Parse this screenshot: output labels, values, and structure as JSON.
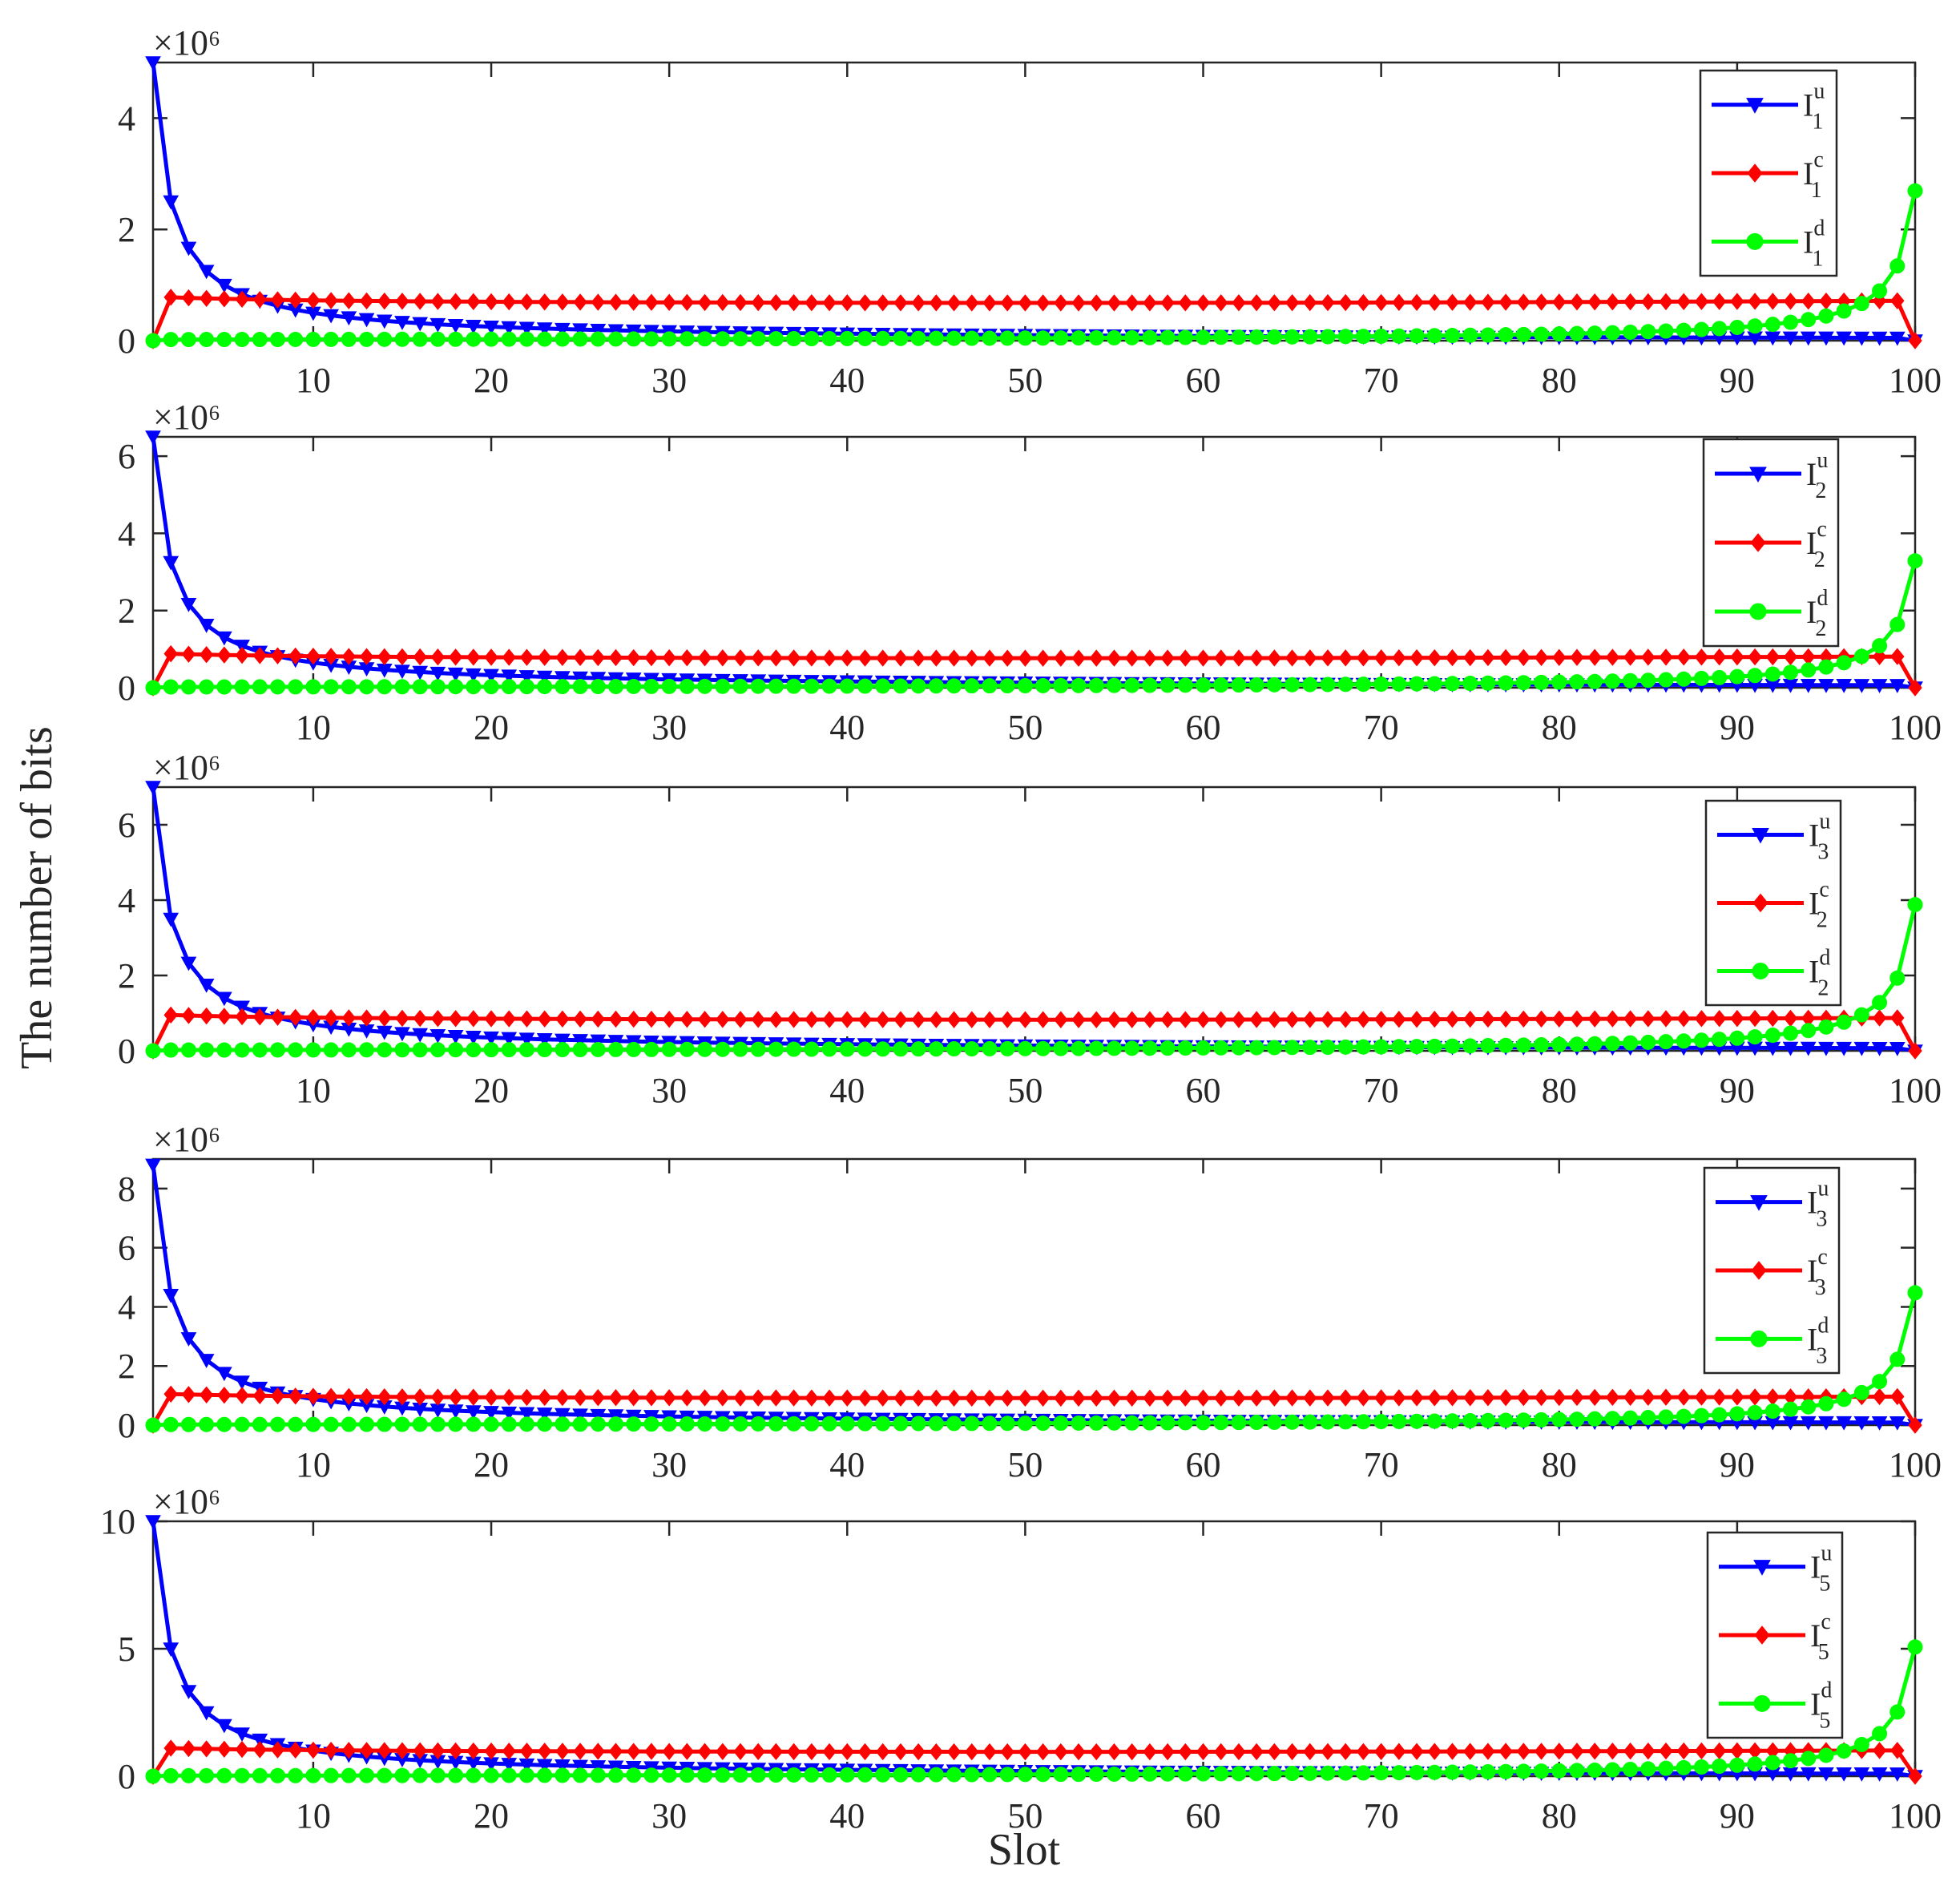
{
  "figure": {
    "ylabel": "The number of bits",
    "xlabel": "Slot"
  },
  "colors": {
    "Iu": "#0000ff",
    "Ic": "#ff0000",
    "Id": "#00ff00",
    "axis": "#262626"
  },
  "chart_data": [
    {
      "type": "line",
      "x_range": [
        1,
        100
      ],
      "x_ticks": [
        10,
        20,
        30,
        40,
        50,
        60,
        70,
        80,
        90,
        100
      ],
      "ylim": [
        0,
        5
      ],
      "y_ticks": [
        0,
        2,
        4
      ],
      "y_multiplier": "×10⁶",
      "legend_position": "top-right",
      "series": [
        {
          "name": "I_1^u",
          "base": "I",
          "sup": "u",
          "sub": "1",
          "marker": "triangle-down",
          "color": "#0000ff",
          "start": 5.0,
          "end": 0.0
        },
        {
          "name": "I_1^c",
          "base": "I",
          "sup": "c",
          "sub": "1",
          "marker": "diamond",
          "color": "#ff0000",
          "start": 0.78,
          "end": 0.78
        },
        {
          "name": "I_1^d",
          "base": "I",
          "sup": "d",
          "sub": "1",
          "marker": "circle",
          "color": "#00ff00",
          "start": 0.02,
          "end": 2.7
        }
      ]
    },
    {
      "type": "line",
      "x_range": [
        1,
        100
      ],
      "x_ticks": [
        10,
        20,
        30,
        40,
        50,
        60,
        70,
        80,
        90,
        100
      ],
      "ylim": [
        0,
        6.5
      ],
      "y_ticks": [
        0,
        2,
        4,
        6
      ],
      "y_multiplier": "×10⁶",
      "legend_position": "top-right",
      "series": [
        {
          "name": "I_2^u",
          "base": "I",
          "sup": "u",
          "sub": "2",
          "marker": "triangle-down",
          "color": "#0000ff",
          "start": 6.5,
          "end": 0.0
        },
        {
          "name": "I_2^c",
          "base": "I",
          "sup": "c",
          "sub": "2",
          "marker": "diamond",
          "color": "#ff0000",
          "start": 0.88,
          "end": 0.9
        },
        {
          "name": "I_2^d",
          "base": "I",
          "sup": "d",
          "sub": "2",
          "marker": "circle",
          "color": "#00ff00",
          "start": 0.02,
          "end": 3.3
        }
      ]
    },
    {
      "type": "line",
      "x_range": [
        1,
        100
      ],
      "x_ticks": [
        10,
        20,
        30,
        40,
        50,
        60,
        70,
        80,
        90,
        100
      ],
      "ylim": [
        0,
        7
      ],
      "y_ticks": [
        0,
        2,
        4,
        6
      ],
      "y_multiplier": "×10⁶",
      "legend_position": "top-right",
      "series": [
        {
          "name": "I_3^u",
          "base": "I",
          "sup": "u",
          "sub": "3",
          "marker": "triangle-down",
          "color": "#0000ff",
          "start": 7.0,
          "end": 0.0
        },
        {
          "name": "I_2^c",
          "base": "I",
          "sup": "c",
          "sub": "2",
          "marker": "diamond",
          "color": "#ff0000",
          "start": 0.95,
          "end": 0.98
        },
        {
          "name": "I_2^d",
          "base": "I",
          "sup": "d",
          "sub": "2",
          "marker": "circle",
          "color": "#00ff00",
          "start": 0.02,
          "end": 3.9
        }
      ]
    },
    {
      "type": "line",
      "x_range": [
        1,
        100
      ],
      "x_ticks": [
        10,
        20,
        30,
        40,
        50,
        60,
        70,
        80,
        90,
        100
      ],
      "ylim": [
        0,
        9
      ],
      "y_ticks": [
        0,
        2,
        4,
        6,
        8
      ],
      "y_multiplier": "×10⁶",
      "legend_position": "top-right",
      "series": [
        {
          "name": "I_3^u",
          "base": "I",
          "sup": "u",
          "sub": "3",
          "marker": "triangle-down",
          "color": "#0000ff",
          "start": 8.8,
          "end": 0.0
        },
        {
          "name": "I_3^c",
          "base": "I",
          "sup": "c",
          "sub": "3",
          "marker": "diamond",
          "color": "#ff0000",
          "start": 1.05,
          "end": 1.1
        },
        {
          "name": "I_3^d",
          "base": "I",
          "sup": "d",
          "sub": "3",
          "marker": "circle",
          "color": "#00ff00",
          "start": 0.02,
          "end": 4.5
        }
      ]
    },
    {
      "type": "line",
      "x_range": [
        1,
        100
      ],
      "x_ticks": [
        10,
        20,
        30,
        40,
        50,
        60,
        70,
        80,
        90,
        100
      ],
      "ylim": [
        0,
        10
      ],
      "y_ticks": [
        0,
        5,
        10
      ],
      "y_multiplier": "×10⁶",
      "legend_position": "top-right",
      "series": [
        {
          "name": "I_5^u",
          "base": "I",
          "sup": "u",
          "sub": "5",
          "marker": "triangle-down",
          "color": "#0000ff",
          "start": 10.0,
          "end": 0.0
        },
        {
          "name": "I_5^c",
          "base": "I",
          "sup": "c",
          "sub": "5",
          "marker": "diamond",
          "color": "#ff0000",
          "start": 1.1,
          "end": 1.2
        },
        {
          "name": "I_5^d",
          "base": "I",
          "sup": "d",
          "sub": "5",
          "marker": "circle",
          "color": "#00ff00",
          "start": 0.02,
          "end": 5.1
        }
      ]
    }
  ]
}
